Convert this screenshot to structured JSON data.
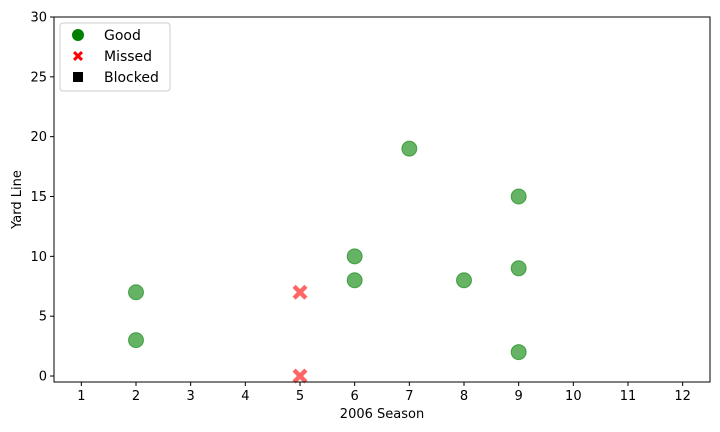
{
  "chart_data": {
    "type": "scatter",
    "title": "",
    "xlabel": "2006 Season",
    "ylabel": "Yard Line",
    "xlim": [
      0.5,
      12.5
    ],
    "ylim": [
      -0.5,
      30
    ],
    "xticks": [
      1,
      2,
      3,
      4,
      5,
      6,
      7,
      8,
      9,
      10,
      11,
      12
    ],
    "yticks": [
      0,
      5,
      10,
      15,
      20,
      25,
      30
    ],
    "grid": false,
    "legend_position": "top-left",
    "series": [
      {
        "name": "Good",
        "marker": "circle",
        "color": "#008000",
        "points": [
          {
            "x": 2,
            "y": 7
          },
          {
            "x": 2,
            "y": 3
          },
          {
            "x": 6,
            "y": 10
          },
          {
            "x": 6,
            "y": 8
          },
          {
            "x": 7,
            "y": 19
          },
          {
            "x": 8,
            "y": 8
          },
          {
            "x": 9,
            "y": 15
          },
          {
            "x": 9,
            "y": 9
          },
          {
            "x": 9,
            "y": 2
          }
        ]
      },
      {
        "name": "Missed",
        "marker": "x",
        "color": "#ff0000",
        "points": [
          {
            "x": 5,
            "y": 7
          },
          {
            "x": 5,
            "y": 0
          }
        ]
      },
      {
        "name": "Blocked",
        "marker": "square",
        "color": "#000000",
        "points": []
      }
    ]
  }
}
